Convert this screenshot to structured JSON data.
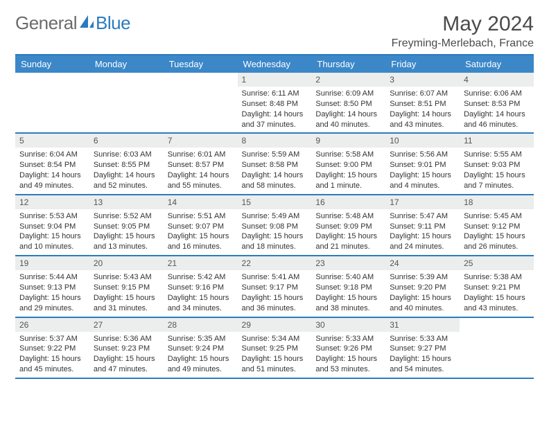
{
  "brand": {
    "name1": "General",
    "name2": "Blue"
  },
  "title": "May 2024",
  "location": "Freyming-Merlebach, France",
  "colors": {
    "accent": "#2b7bbf",
    "header_bg": "#3b87c8",
    "daynum_bg": "#eceded",
    "text": "#333333",
    "muted": "#6b6b6b"
  },
  "calendar": {
    "weekdays": [
      "Sunday",
      "Monday",
      "Tuesday",
      "Wednesday",
      "Thursday",
      "Friday",
      "Saturday"
    ],
    "weeks": [
      [
        null,
        null,
        null,
        {
          "n": "1",
          "sunrise": "Sunrise: 6:11 AM",
          "sunset": "Sunset: 8:48 PM",
          "d1": "Daylight: 14 hours",
          "d2": "and 37 minutes."
        },
        {
          "n": "2",
          "sunrise": "Sunrise: 6:09 AM",
          "sunset": "Sunset: 8:50 PM",
          "d1": "Daylight: 14 hours",
          "d2": "and 40 minutes."
        },
        {
          "n": "3",
          "sunrise": "Sunrise: 6:07 AM",
          "sunset": "Sunset: 8:51 PM",
          "d1": "Daylight: 14 hours",
          "d2": "and 43 minutes."
        },
        {
          "n": "4",
          "sunrise": "Sunrise: 6:06 AM",
          "sunset": "Sunset: 8:53 PM",
          "d1": "Daylight: 14 hours",
          "d2": "and 46 minutes."
        }
      ],
      [
        {
          "n": "5",
          "sunrise": "Sunrise: 6:04 AM",
          "sunset": "Sunset: 8:54 PM",
          "d1": "Daylight: 14 hours",
          "d2": "and 49 minutes."
        },
        {
          "n": "6",
          "sunrise": "Sunrise: 6:03 AM",
          "sunset": "Sunset: 8:55 PM",
          "d1": "Daylight: 14 hours",
          "d2": "and 52 minutes."
        },
        {
          "n": "7",
          "sunrise": "Sunrise: 6:01 AM",
          "sunset": "Sunset: 8:57 PM",
          "d1": "Daylight: 14 hours",
          "d2": "and 55 minutes."
        },
        {
          "n": "8",
          "sunrise": "Sunrise: 5:59 AM",
          "sunset": "Sunset: 8:58 PM",
          "d1": "Daylight: 14 hours",
          "d2": "and 58 minutes."
        },
        {
          "n": "9",
          "sunrise": "Sunrise: 5:58 AM",
          "sunset": "Sunset: 9:00 PM",
          "d1": "Daylight: 15 hours",
          "d2": "and 1 minute."
        },
        {
          "n": "10",
          "sunrise": "Sunrise: 5:56 AM",
          "sunset": "Sunset: 9:01 PM",
          "d1": "Daylight: 15 hours",
          "d2": "and 4 minutes."
        },
        {
          "n": "11",
          "sunrise": "Sunrise: 5:55 AM",
          "sunset": "Sunset: 9:03 PM",
          "d1": "Daylight: 15 hours",
          "d2": "and 7 minutes."
        }
      ],
      [
        {
          "n": "12",
          "sunrise": "Sunrise: 5:53 AM",
          "sunset": "Sunset: 9:04 PM",
          "d1": "Daylight: 15 hours",
          "d2": "and 10 minutes."
        },
        {
          "n": "13",
          "sunrise": "Sunrise: 5:52 AM",
          "sunset": "Sunset: 9:05 PM",
          "d1": "Daylight: 15 hours",
          "d2": "and 13 minutes."
        },
        {
          "n": "14",
          "sunrise": "Sunrise: 5:51 AM",
          "sunset": "Sunset: 9:07 PM",
          "d1": "Daylight: 15 hours",
          "d2": "and 16 minutes."
        },
        {
          "n": "15",
          "sunrise": "Sunrise: 5:49 AM",
          "sunset": "Sunset: 9:08 PM",
          "d1": "Daylight: 15 hours",
          "d2": "and 18 minutes."
        },
        {
          "n": "16",
          "sunrise": "Sunrise: 5:48 AM",
          "sunset": "Sunset: 9:09 PM",
          "d1": "Daylight: 15 hours",
          "d2": "and 21 minutes."
        },
        {
          "n": "17",
          "sunrise": "Sunrise: 5:47 AM",
          "sunset": "Sunset: 9:11 PM",
          "d1": "Daylight: 15 hours",
          "d2": "and 24 minutes."
        },
        {
          "n": "18",
          "sunrise": "Sunrise: 5:45 AM",
          "sunset": "Sunset: 9:12 PM",
          "d1": "Daylight: 15 hours",
          "d2": "and 26 minutes."
        }
      ],
      [
        {
          "n": "19",
          "sunrise": "Sunrise: 5:44 AM",
          "sunset": "Sunset: 9:13 PM",
          "d1": "Daylight: 15 hours",
          "d2": "and 29 minutes."
        },
        {
          "n": "20",
          "sunrise": "Sunrise: 5:43 AM",
          "sunset": "Sunset: 9:15 PM",
          "d1": "Daylight: 15 hours",
          "d2": "and 31 minutes."
        },
        {
          "n": "21",
          "sunrise": "Sunrise: 5:42 AM",
          "sunset": "Sunset: 9:16 PM",
          "d1": "Daylight: 15 hours",
          "d2": "and 34 minutes."
        },
        {
          "n": "22",
          "sunrise": "Sunrise: 5:41 AM",
          "sunset": "Sunset: 9:17 PM",
          "d1": "Daylight: 15 hours",
          "d2": "and 36 minutes."
        },
        {
          "n": "23",
          "sunrise": "Sunrise: 5:40 AM",
          "sunset": "Sunset: 9:18 PM",
          "d1": "Daylight: 15 hours",
          "d2": "and 38 minutes."
        },
        {
          "n": "24",
          "sunrise": "Sunrise: 5:39 AM",
          "sunset": "Sunset: 9:20 PM",
          "d1": "Daylight: 15 hours",
          "d2": "and 40 minutes."
        },
        {
          "n": "25",
          "sunrise": "Sunrise: 5:38 AM",
          "sunset": "Sunset: 9:21 PM",
          "d1": "Daylight: 15 hours",
          "d2": "and 43 minutes."
        }
      ],
      [
        {
          "n": "26",
          "sunrise": "Sunrise: 5:37 AM",
          "sunset": "Sunset: 9:22 PM",
          "d1": "Daylight: 15 hours",
          "d2": "and 45 minutes."
        },
        {
          "n": "27",
          "sunrise": "Sunrise: 5:36 AM",
          "sunset": "Sunset: 9:23 PM",
          "d1": "Daylight: 15 hours",
          "d2": "and 47 minutes."
        },
        {
          "n": "28",
          "sunrise": "Sunrise: 5:35 AM",
          "sunset": "Sunset: 9:24 PM",
          "d1": "Daylight: 15 hours",
          "d2": "and 49 minutes."
        },
        {
          "n": "29",
          "sunrise": "Sunrise: 5:34 AM",
          "sunset": "Sunset: 9:25 PM",
          "d1": "Daylight: 15 hours",
          "d2": "and 51 minutes."
        },
        {
          "n": "30",
          "sunrise": "Sunrise: 5:33 AM",
          "sunset": "Sunset: 9:26 PM",
          "d1": "Daylight: 15 hours",
          "d2": "and 53 minutes."
        },
        {
          "n": "31",
          "sunrise": "Sunrise: 5:33 AM",
          "sunset": "Sunset: 9:27 PM",
          "d1": "Daylight: 15 hours",
          "d2": "and 54 minutes."
        },
        null
      ]
    ]
  }
}
